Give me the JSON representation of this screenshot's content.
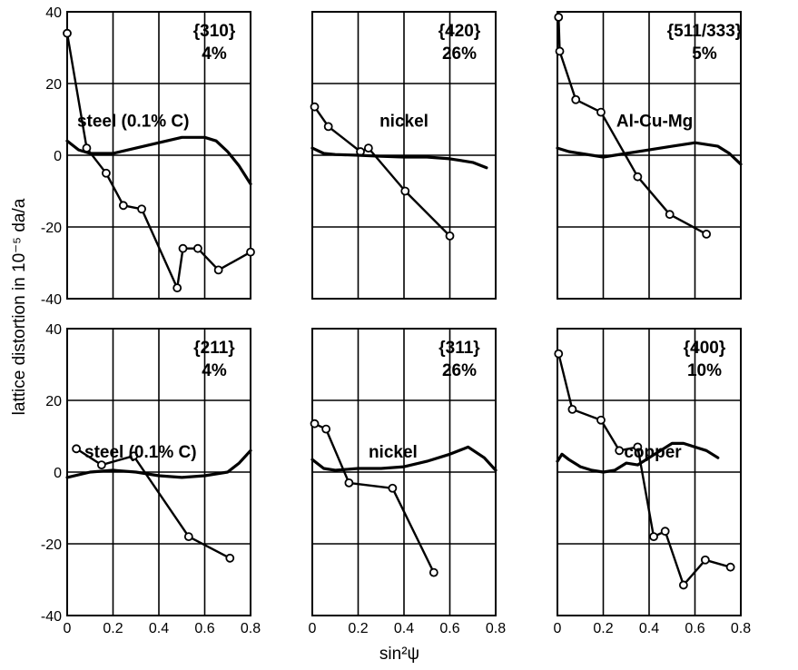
{
  "figure": {
    "ylabel": "lattice distortion in 10⁻⁵ da/a",
    "xlabel": "sin²ψ"
  },
  "chart_data": [
    {
      "type": "line",
      "material": "steel (0.1% C)",
      "plane": "{310}",
      "deformation": "4%",
      "xlim": [
        0,
        0.8
      ],
      "ylim": [
        -40,
        40
      ],
      "x_ticks": [
        "0",
        "0.2",
        "0.4",
        "0.6",
        "0.8"
      ],
      "y_ticks": [
        "40",
        "20",
        "0",
        "-20",
        "-40"
      ],
      "grid": true,
      "series": [
        {
          "marker": "circle",
          "x": [
            0,
            0.085,
            0.17,
            0.245,
            0.325,
            0.48,
            0.505,
            0.57,
            0.66,
            0.8
          ],
          "y": [
            34,
            2,
            -5,
            -14,
            -15,
            -37,
            -26,
            -26,
            -32,
            -27
          ]
        },
        {
          "marker": "none",
          "x": [
            0,
            0.05,
            0.1,
            0.2,
            0.3,
            0.4,
            0.5,
            0.6,
            0.65,
            0.7,
            0.75,
            0.8
          ],
          "y": [
            4,
            1.5,
            0.5,
            0.5,
            2,
            3.5,
            5,
            5,
            4,
            1,
            -3,
            -8
          ]
        }
      ]
    },
    {
      "type": "line",
      "material": "nickel",
      "plane": "{420}",
      "deformation": "26%",
      "xlim": [
        0,
        0.8
      ],
      "ylim": [
        -40,
        40
      ],
      "x_ticks": [
        "0",
        "0.2",
        "0.4",
        "0.6",
        "0.8"
      ],
      "y_ticks": [
        "40",
        "20",
        "0",
        "-20",
        "-40"
      ],
      "grid": true,
      "series": [
        {
          "marker": "circle",
          "x": [
            0.01,
            0.07,
            0.21,
            0.245,
            0.405,
            0.6
          ],
          "y": [
            13.5,
            8,
            1,
            2,
            -10,
            -22.5
          ]
        },
        {
          "marker": "none",
          "x": [
            0,
            0.05,
            0.1,
            0.2,
            0.3,
            0.4,
            0.5,
            0.6,
            0.7,
            0.76
          ],
          "y": [
            2,
            0.5,
            0.2,
            0,
            -0.3,
            -0.5,
            -0.5,
            -1,
            -2,
            -3.5
          ]
        }
      ]
    },
    {
      "type": "line",
      "material": "Al-Cu-Mg",
      "plane": "{511/333}",
      "deformation": "5%",
      "xlim": [
        0,
        0.8
      ],
      "ylim": [
        -40,
        40
      ],
      "x_ticks": [
        "0",
        "0.2",
        "0.4",
        "0.6",
        "0.8"
      ],
      "y_ticks": [
        "40",
        "20",
        "0",
        "-20",
        "-40"
      ],
      "grid": true,
      "series": [
        {
          "marker": "circle",
          "x": [
            0.005,
            0.01,
            0.08,
            0.19,
            0.35,
            0.49,
            0.65
          ],
          "y": [
            38.5,
            29,
            15.5,
            12,
            -6,
            -16.5,
            -22
          ]
        },
        {
          "marker": "none",
          "x": [
            0,
            0.05,
            0.1,
            0.2,
            0.3,
            0.4,
            0.5,
            0.6,
            0.7,
            0.75,
            0.8
          ],
          "y": [
            2,
            1,
            0.5,
            -0.5,
            0.5,
            1.5,
            2.5,
            3.5,
            2.5,
            0.5,
            -2.5
          ]
        }
      ]
    },
    {
      "type": "line",
      "material": "steel (0.1% C)",
      "plane": "{211}",
      "deformation": "4%",
      "xlim": [
        0,
        0.8
      ],
      "ylim": [
        -40,
        40
      ],
      "x_ticks": [
        "0",
        "0.2",
        "0.4",
        "0.6",
        "0.8"
      ],
      "y_ticks": [
        "40",
        "20",
        "0",
        "-20",
        "-40"
      ],
      "grid": true,
      "series": [
        {
          "marker": "circle",
          "x": [
            0.04,
            0.15,
            0.29,
            0.53,
            0.71
          ],
          "y": [
            6.5,
            2,
            4.5,
            -18,
            -24
          ]
        },
        {
          "marker": "none",
          "x": [
            0,
            0.1,
            0.2,
            0.3,
            0.4,
            0.5,
            0.6,
            0.7,
            0.75,
            0.8
          ],
          "y": [
            -1.5,
            0,
            0.5,
            0,
            -1,
            -1.5,
            -1,
            0,
            2.5,
            6
          ]
        }
      ]
    },
    {
      "type": "line",
      "material": "nickel",
      "plane": "{311}",
      "deformation": "26%",
      "xlim": [
        0,
        0.8
      ],
      "ylim": [
        -40,
        40
      ],
      "x_ticks": [
        "0",
        "0.2",
        "0.4",
        "0.6",
        "0.8"
      ],
      "y_ticks": [
        "40",
        "20",
        "0",
        "-20",
        "-40"
      ],
      "grid": true,
      "series": [
        {
          "marker": "circle",
          "x": [
            0.01,
            0.06,
            0.16,
            0.35,
            0.53
          ],
          "y": [
            13.5,
            12,
            -3,
            -4.5,
            -28
          ]
        },
        {
          "marker": "none",
          "x": [
            0,
            0.05,
            0.1,
            0.2,
            0.3,
            0.4,
            0.5,
            0.6,
            0.68,
            0.75,
            0.8
          ],
          "y": [
            3.5,
            1,
            0.5,
            1,
            1,
            1.5,
            3,
            5,
            7,
            4,
            0.5
          ]
        }
      ]
    },
    {
      "type": "line",
      "material": "copper",
      "plane": "{400}",
      "deformation": "10%",
      "xlim": [
        0,
        0.8
      ],
      "ylim": [
        -40,
        40
      ],
      "x_ticks": [
        "0",
        "0.2",
        "0.4",
        "0.6",
        "0.8"
      ],
      "y_ticks": [
        "40",
        "20",
        "0",
        "-20",
        "-40"
      ],
      "grid": true,
      "series": [
        {
          "marker": "circle",
          "x": [
            0.005,
            0.065,
            0.19,
            0.27,
            0.35,
            0.42,
            0.47,
            0.55,
            0.645,
            0.755
          ],
          "y": [
            33,
            17.5,
            14.5,
            6,
            7,
            -18,
            -16.5,
            -31.5,
            -24.5,
            -26.5
          ]
        },
        {
          "marker": "none",
          "x": [
            0,
            0.02,
            0.05,
            0.1,
            0.15,
            0.2,
            0.25,
            0.3,
            0.35,
            0.4,
            0.45,
            0.5,
            0.55,
            0.6,
            0.65,
            0.7
          ],
          "y": [
            3,
            5,
            3.5,
            1.5,
            0.5,
            0,
            0.5,
            2.5,
            2,
            4,
            6,
            8,
            8,
            7,
            6,
            4
          ]
        }
      ]
    }
  ]
}
